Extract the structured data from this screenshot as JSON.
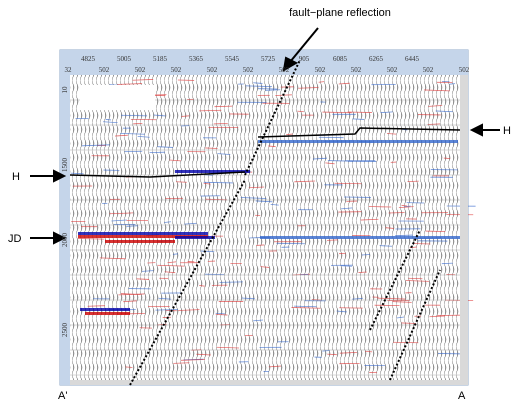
{
  "annotations": {
    "fault": "fault−plane reflection",
    "h_left": "H",
    "h_right": "H",
    "jd": "JD",
    "a_prime": "A'",
    "a": "A"
  },
  "top_axis": {
    "traces": [
      "4825",
      "5005",
      "5185",
      "5365",
      "5545",
      "5725",
      "905",
      "6085",
      "6265",
      "6445"
    ],
    "offsets": [
      "32",
      "502",
      "502",
      "502",
      "502",
      "502",
      "502",
      "502",
      "502",
      "502",
      "502",
      "502"
    ]
  },
  "left_axis": {
    "times": [
      "10",
      "1500",
      "2000",
      "2500"
    ]
  }
}
